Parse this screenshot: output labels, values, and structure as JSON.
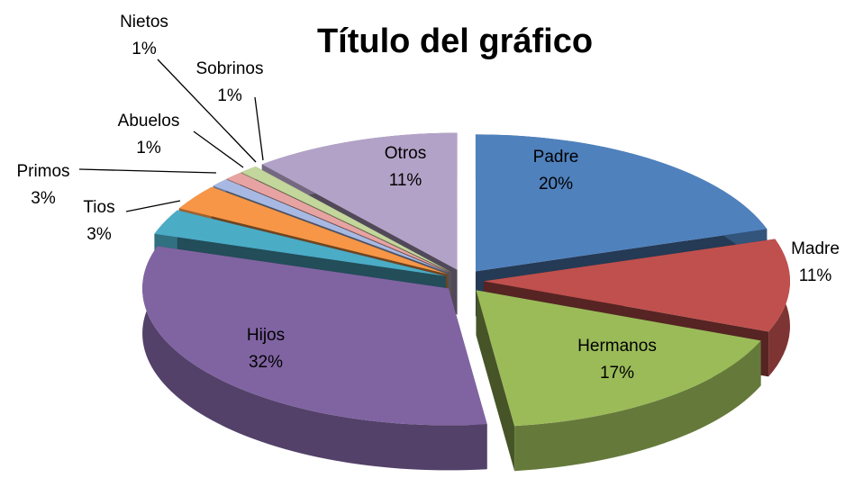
{
  "chart_data": {
    "type": "pie3d",
    "title": "Título del gráfico",
    "categories": [
      "Padre",
      "Madre",
      "Hermanos",
      "Hijos",
      "Tios",
      "Primos",
      "Abuelos",
      "Sobrinos",
      "Nietos",
      "Otros"
    ],
    "values": [
      20,
      11,
      17,
      32,
      3,
      3,
      1,
      1,
      1,
      11
    ],
    "value_labels": [
      "20%",
      "11%",
      "17%",
      "32%",
      "3%",
      "3%",
      "1%",
      "1%",
      "1%",
      "11%"
    ],
    "colors": [
      "#4f81bd",
      "#c0504d",
      "#9bbb59",
      "#8064a2",
      "#4bacc6",
      "#f79646",
      "#a7b9e3",
      "#e6a3a2",
      "#c3d69b",
      "#b3a2c7"
    ]
  }
}
